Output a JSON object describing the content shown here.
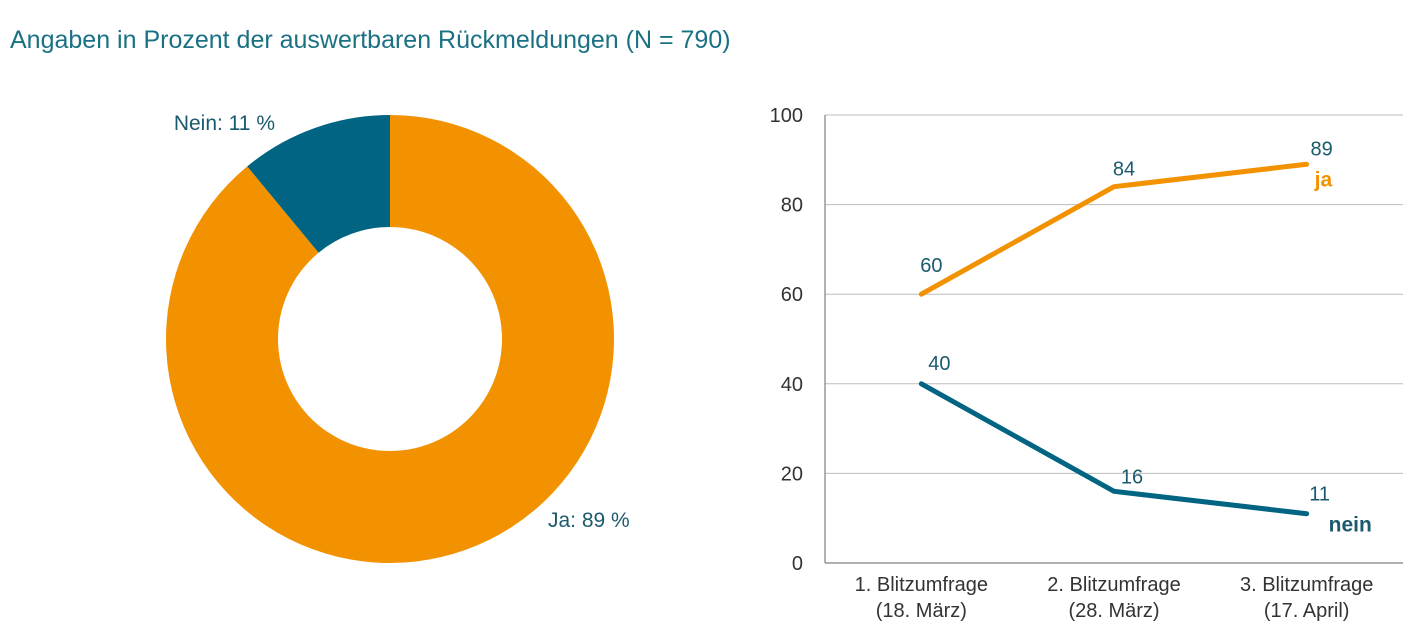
{
  "title": "Angaben in Prozent der auswertbaren Rückmeldungen (N = 790)",
  "chart_data": [
    {
      "type": "pie",
      "donut": true,
      "slices": [
        {
          "label": "Ja: 89 %",
          "name": "Ja",
          "value": 89,
          "color": "#f39200"
        },
        {
          "label": "Nein: 11 %",
          "name": "Nein",
          "value": 11,
          "color": "#006482"
        }
      ]
    },
    {
      "type": "line",
      "categories": [
        [
          "1. Blitzumfrage",
          "(18. März)"
        ],
        [
          "2. Blitzumfrage",
          "(28. März)"
        ],
        [
          "3. Blitzumfrage",
          "(17. April)"
        ]
      ],
      "ylim": [
        0,
        100
      ],
      "yticks": [
        0,
        20,
        40,
        60,
        80,
        100
      ],
      "grid": true,
      "series": [
        {
          "name": "ja",
          "values": [
            60,
            84,
            89
          ],
          "color": "#f39200"
        },
        {
          "name": "nein",
          "values": [
            40,
            16,
            11
          ],
          "color": "#006482"
        }
      ]
    }
  ]
}
